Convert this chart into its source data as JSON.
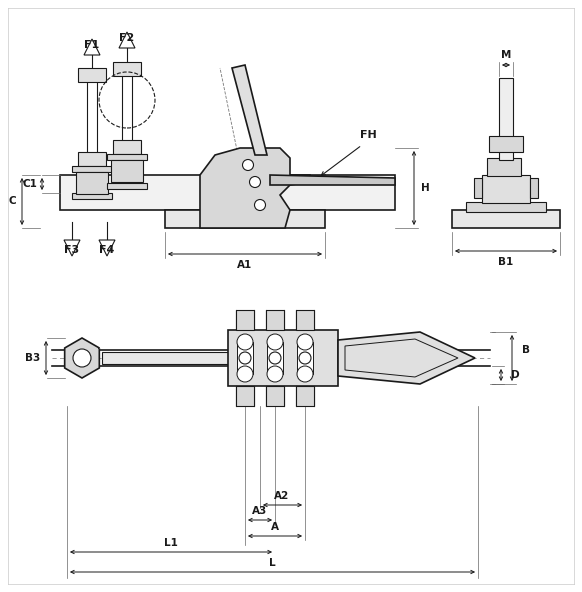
{
  "bg_color": "#ffffff",
  "line_color": "#1a1a1a",
  "fig_width": 5.82,
  "fig_height": 5.92,
  "labels": {
    "F1": "F1",
    "F2": "F2",
    "F3": "F3",
    "F4": "F4",
    "FH": "FH",
    "C1": "C1",
    "C": "C",
    "H": "H",
    "A1": "A1",
    "B1": "B1",
    "M": "M",
    "B3": "B3",
    "B": "B",
    "D": "D",
    "A2": "A2",
    "A3": "A3",
    "A": "A",
    "L1": "L1",
    "L": "L"
  }
}
